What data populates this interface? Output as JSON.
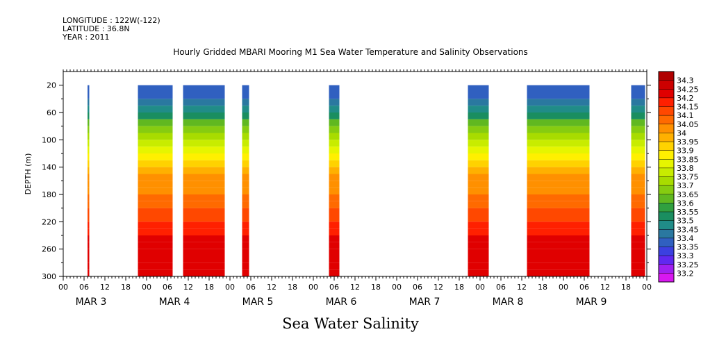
{
  "header": {
    "longitude": "LONGITUDE : 122W(-122)",
    "latitude": "LATITUDE : 36.8N",
    "year": "YEAR : 2011"
  },
  "chart_data": {
    "type": "heatmap",
    "title": "Hourly Gridded MBARI Mooring M1 Sea Water Temperature and Salinity Observations",
    "main_label": "Sea Water Salinity",
    "ylabel": "DEPTH (m)",
    "xlabel": "",
    "ylim": [
      300,
      0
    ],
    "xlim_hours": [
      0,
      168
    ],
    "y_ticks": [
      20,
      60,
      100,
      140,
      180,
      220,
      260,
      300
    ],
    "x_tick_labels": [
      "00",
      "06",
      "12",
      "18",
      "00",
      "06",
      "12",
      "18",
      "00",
      "06",
      "12",
      "18",
      "00",
      "06",
      "12",
      "18",
      "00",
      "06",
      "12",
      "18",
      "00",
      "06",
      "12",
      "18",
      "00",
      "06",
      "12",
      "18",
      "00"
    ],
    "day_labels": [
      "MAR 3",
      "MAR 4",
      "MAR 5",
      "MAR 6",
      "MAR 7",
      "MAR 8",
      "MAR 9"
    ],
    "colorbar_levels": [
      "34.3",
      "34.25",
      "34.2",
      "34.15",
      "34.1",
      "34.05",
      "34",
      "33.95",
      "33.9",
      "33.85",
      "33.8",
      "33.75",
      "33.7",
      "33.65",
      "33.6",
      "33.55",
      "33.5",
      "33.45",
      "33.4",
      "33.35",
      "33.3",
      "33.25",
      "33.2"
    ],
    "colorbar_colors": [
      "#b00000",
      "#cc0000",
      "#e00000",
      "#ff2000",
      "#ff4800",
      "#ff6a00",
      "#ff9000",
      "#ffb000",
      "#ffd200",
      "#fff000",
      "#e6f500",
      "#c8ec00",
      "#a8dc00",
      "#86cc10",
      "#60b820",
      "#30a040",
      "#1a8e60",
      "#208c88",
      "#2a78a0",
      "#3060c0",
      "#3c40e0",
      "#6028f0",
      "#a020f0",
      "#d818f0"
    ],
    "data_segments_hours": [
      [
        7,
        7.5
      ],
      [
        21.5,
        31.5
      ],
      [
        34.5,
        46.5
      ],
      [
        51.5,
        53.5
      ],
      [
        76.5,
        79.5
      ],
      [
        116.5,
        122.5
      ],
      [
        133.5,
        151.5
      ],
      [
        163.5,
        167.5
      ]
    ],
    "salinity_profile": [
      {
        "depth": 20,
        "value": 33.35
      },
      {
        "depth": 40,
        "value": 33.4
      },
      {
        "depth": 60,
        "value": 33.5
      },
      {
        "depth": 80,
        "value": 33.65
      },
      {
        "depth": 100,
        "value": 33.75
      },
      {
        "depth": 120,
        "value": 33.85
      },
      {
        "depth": 140,
        "value": 33.95
      },
      {
        "depth": 160,
        "value": 34.02
      },
      {
        "depth": 180,
        "value": 34.05
      },
      {
        "depth": 200,
        "value": 34.1
      },
      {
        "depth": 220,
        "value": 34.15
      },
      {
        "depth": 240,
        "value": 34.2
      },
      {
        "depth": 260,
        "value": 34.25
      },
      {
        "depth": 280,
        "value": 34.2
      },
      {
        "depth": 300,
        "value": 34.2
      }
    ]
  }
}
